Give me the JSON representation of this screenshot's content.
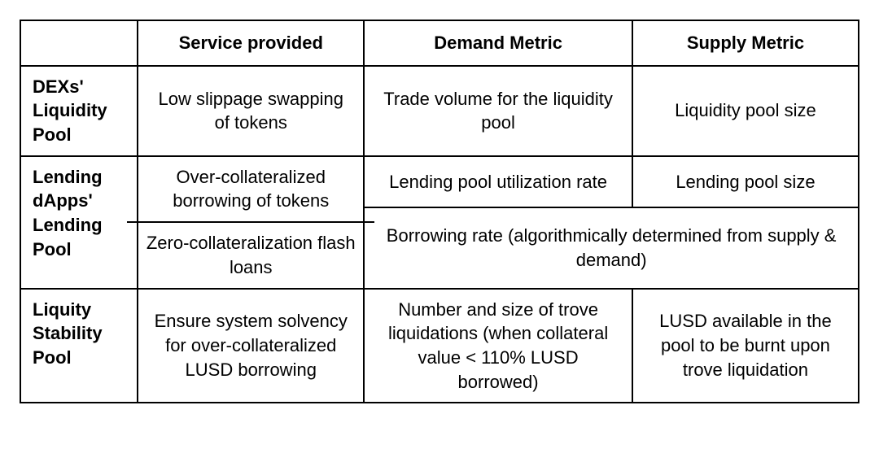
{
  "table": {
    "type": "table",
    "background_color": "#ffffff",
    "border_color": "#000000",
    "border_width": 2,
    "font_family": "Arial",
    "cell_fontsize": 22,
    "header_fontweight": "bold",
    "column_widths_pct": [
      14,
      27,
      32,
      27
    ],
    "columns": {
      "blank": "",
      "service": "Service provided",
      "demand": "Demand Metric",
      "supply": "Supply Metric"
    },
    "rows": [
      {
        "header": "DEXs' Liquidity Pool",
        "service": "Low slippage swapping of tokens",
        "demand": "Trade volume for the liquidity pool",
        "supply": "Liquidity pool size"
      },
      {
        "header": "Lending dApps' Lending Pool",
        "service_split": [
          "Over-collateralized borrowing of tokens",
          "Zero-collateralization flash loans"
        ],
        "demand_top": "Lending pool utilization rate",
        "supply_top": "Lending pool size",
        "merged_bottom": "Borrowing rate (algorithmically determined from supply & demand)"
      },
      {
        "header": "Liquity Stability Pool",
        "service": "Ensure system solvency for over-collateralized LUSD borrowing",
        "demand": "Number and size of trove liquidations (when collateral value < 110% LUSD borrowed)",
        "supply": "LUSD available in the pool to be burnt upon trove liquidation"
      }
    ]
  }
}
